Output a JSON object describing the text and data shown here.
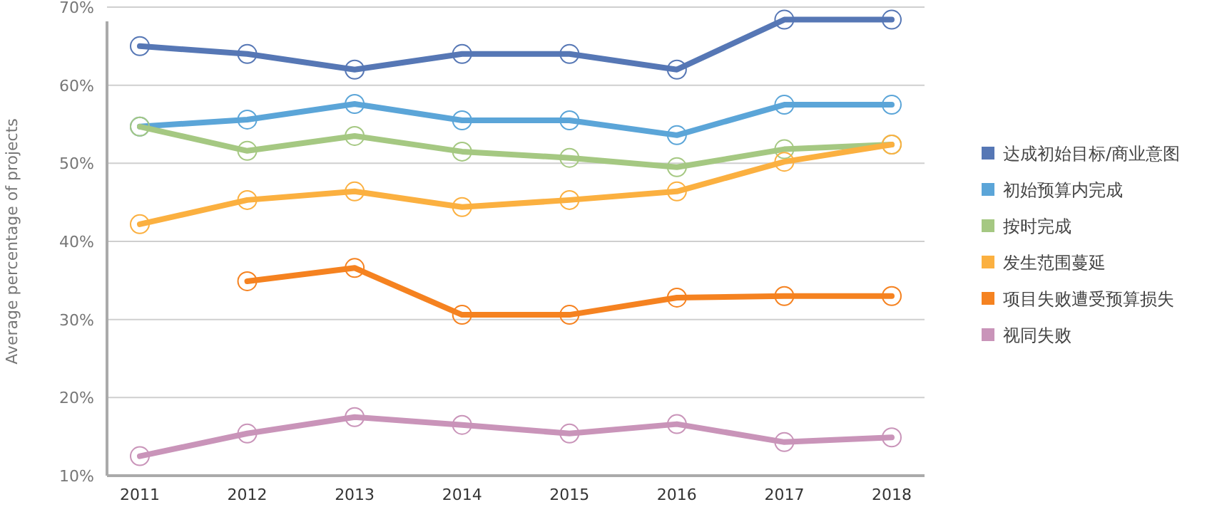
{
  "chart_data": {
    "type": "line",
    "ylabel": "Average percentage of projects",
    "categories": [
      "2011",
      "2012",
      "2013",
      "2014",
      "2015",
      "2016",
      "2017",
      "2018"
    ],
    "series": [
      {
        "name": "达成初始目标/商业意图",
        "color": "#5677b5",
        "values": [
          65,
          64,
          62,
          64,
          64,
          62,
          68.4,
          68.4
        ]
      },
      {
        "name": "初始预算内完成",
        "color": "#5ba5d8",
        "values": [
          54.7,
          55.6,
          57.6,
          55.5,
          55.5,
          53.6,
          57.5,
          57.5
        ]
      },
      {
        "name": "按时完成",
        "color": "#a5c882",
        "values": [
          54.7,
          51.6,
          53.5,
          51.5,
          50.7,
          49.5,
          51.8,
          52.4
        ]
      },
      {
        "name": "发生范围蔓延",
        "color": "#fbb040",
        "values": [
          42.2,
          45.3,
          46.4,
          44.4,
          45.3,
          46.4,
          50.2,
          52.4
        ]
      },
      {
        "name": "项目失败遭受预算损失",
        "color": "#f58220",
        "values": [
          null,
          34.9,
          36.6,
          30.6,
          30.6,
          32.8,
          33,
          33
        ]
      },
      {
        "name": "视同失败",
        "color": "#c994b9",
        "values": [
          12.5,
          15.4,
          17.5,
          16.5,
          15.4,
          16.6,
          14.3,
          14.9
        ]
      }
    ],
    "ylim": [
      10,
      70
    ],
    "yticks": [
      {
        "value": 10,
        "label": "10%"
      },
      {
        "value": 20,
        "label": "20%"
      },
      {
        "value": 30,
        "label": "30%"
      },
      {
        "value": 40,
        "label": "40%"
      },
      {
        "value": 50,
        "label": "50%"
      },
      {
        "value": 60,
        "label": "60%"
      },
      {
        "value": 70,
        "label": "70%"
      }
    ],
    "grid": "y",
    "legend": "right",
    "marker": "circle",
    "line_style": "solid"
  }
}
